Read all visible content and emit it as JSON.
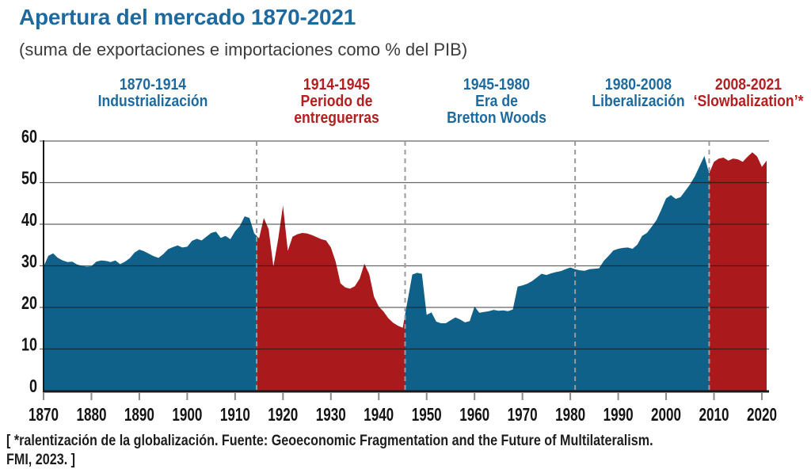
{
  "chart_data": {
    "type": "area",
    "title": "Apertura del mercado 1870-2021",
    "subtitle": "(suma de exportaciones e importaciones como % del PIB)",
    "xlabel": "",
    "ylabel": "",
    "unit": "% del PIB",
    "ylim": [
      0,
      60
    ],
    "yticks": [
      0,
      10,
      20,
      30,
      40,
      50,
      60
    ],
    "xticks": [
      1870,
      1880,
      1890,
      1900,
      1910,
      1920,
      1930,
      1940,
      1950,
      1960,
      1970,
      1980,
      1990,
      2000,
      2010,
      2020
    ],
    "x_range": [
      1870,
      2021
    ],
    "grid": true,
    "legend_position": "none",
    "years": [
      1870,
      1871,
      1872,
      1873,
      1874,
      1875,
      1876,
      1877,
      1878,
      1879,
      1880,
      1881,
      1882,
      1883,
      1884,
      1885,
      1886,
      1887,
      1888,
      1889,
      1890,
      1891,
      1892,
      1893,
      1894,
      1895,
      1896,
      1897,
      1898,
      1899,
      1900,
      1901,
      1902,
      1903,
      1904,
      1905,
      1906,
      1907,
      1908,
      1909,
      1910,
      1911,
      1912,
      1913,
      1914,
      1915,
      1916,
      1917,
      1918,
      1919,
      1920,
      1921,
      1922,
      1923,
      1924,
      1925,
      1926,
      1927,
      1928,
      1929,
      1930,
      1931,
      1932,
      1933,
      1934,
      1935,
      1936,
      1937,
      1938,
      1939,
      1940,
      1941,
      1942,
      1943,
      1944,
      1945,
      1946,
      1947,
      1948,
      1949,
      1950,
      1951,
      1952,
      1953,
      1954,
      1955,
      1956,
      1957,
      1958,
      1959,
      1960,
      1961,
      1962,
      1963,
      1964,
      1965,
      1966,
      1967,
      1968,
      1969,
      1970,
      1971,
      1972,
      1973,
      1974,
      1975,
      1976,
      1977,
      1978,
      1979,
      1980,
      1981,
      1982,
      1983,
      1984,
      1985,
      1986,
      1987,
      1988,
      1989,
      1990,
      1991,
      1992,
      1993,
      1994,
      1995,
      1996,
      1997,
      1998,
      1999,
      2000,
      2001,
      2002,
      2003,
      2004,
      2005,
      2006,
      2007,
      2008,
      2009,
      2010,
      2011,
      2012,
      2013,
      2014,
      2015,
      2016,
      2017,
      2018,
      2019,
      2020,
      2021
    ],
    "values": [
      29.8,
      32.4,
      33.0,
      31.9,
      31.3,
      30.9,
      31.0,
      30.3,
      30.0,
      29.8,
      29.9,
      31.0,
      31.3,
      31.2,
      30.9,
      31.3,
      30.4,
      31.0,
      31.8,
      33.2,
      33.9,
      33.5,
      32.9,
      32.3,
      31.9,
      32.8,
      34.0,
      34.5,
      34.9,
      34.4,
      34.6,
      36.0,
      36.5,
      36.1,
      37.0,
      37.9,
      38.2,
      36.7,
      37.2,
      36.4,
      38.3,
      39.6,
      41.9,
      41.5,
      37.8,
      36.6,
      41.5,
      38.8,
      29.8,
      36.5,
      44.5,
      33.6,
      37.0,
      37.6,
      37.9,
      37.8,
      37.4,
      36.9,
      36.4,
      36.1,
      34.4,
      31.0,
      25.8,
      24.8,
      24.5,
      25.1,
      26.9,
      30.5,
      28.0,
      22.6,
      20.2,
      19.0,
      17.4,
      16.3,
      15.6,
      15.1,
      21.5,
      27.9,
      28.3,
      28.1,
      18.2,
      18.8,
      16.6,
      16.2,
      16.2,
      16.9,
      17.6,
      17.1,
      16.4,
      16.7,
      20.2,
      18.7,
      18.9,
      19.1,
      19.4,
      19.2,
      19.3,
      19.1,
      19.5,
      25.0,
      25.3,
      25.7,
      26.3,
      27.2,
      28.1,
      27.8,
      28.2,
      28.5,
      28.7,
      29.2,
      29.6,
      29.2,
      28.9,
      28.8,
      29.2,
      29.3,
      29.4,
      31.2,
      32.4,
      33.7,
      34.1,
      34.3,
      34.4,
      34.1,
      35.1,
      37.2,
      37.9,
      39.4,
      41.0,
      43.5,
      46.2,
      47.0,
      46.1,
      46.5,
      48.0,
      49.6,
      51.5,
      54.0,
      56.4,
      52.2,
      55.0,
      55.8,
      56.0,
      55.3,
      55.8,
      55.6,
      55.0,
      56.2,
      57.3,
      56.3,
      53.8,
      55.3
    ],
    "segments": [
      {
        "name": "industrializacion",
        "from": 1870,
        "to": 1914.5,
        "color": "blue"
      },
      {
        "name": "entreguerras",
        "from": 1914.5,
        "to": 1945.5,
        "color": "red"
      },
      {
        "name": "bretton-woods-y-liberalizacion",
        "from": 1945.5,
        "to": 2009,
        "color": "blue"
      },
      {
        "name": "slowbalization",
        "from": 2009,
        "to": 2021,
        "color": "red"
      }
    ],
    "dividers": [
      1914.5,
      1945.5,
      1981,
      2009
    ],
    "colors": {
      "blue": "#0f6189",
      "red": "#aa1a1d",
      "grid": "rgba(20,20,20,0.65)",
      "divider": "#9a9a9a",
      "axis": "#1a1a1a",
      "tick": "#8a8a8a",
      "text_blue": "#1e6a9e",
      "text_red": "#b32022"
    },
    "period_annotations": [
      {
        "range": "1870-1914",
        "name": "Industrialización",
        "color_role": "blue"
      },
      {
        "range": "1914-1945",
        "name": "Periodo de\nentreguerras",
        "color_role": "red"
      },
      {
        "range": "1945-1980",
        "name": "Era de\nBretton Woods",
        "color_role": "blue"
      },
      {
        "range": "1980-2008",
        "name": "Liberalización",
        "color_role": "blue"
      },
      {
        "range": "2008-2021",
        "name": "‘Slowbalization’*",
        "color_role": "red"
      }
    ]
  },
  "footer": {
    "line1": "[ *ralentización de la globalización. Fuente: Geoeconomic Fragmentation and the Future of Multilateralism.",
    "line2": "FMI, 2023. ]"
  }
}
